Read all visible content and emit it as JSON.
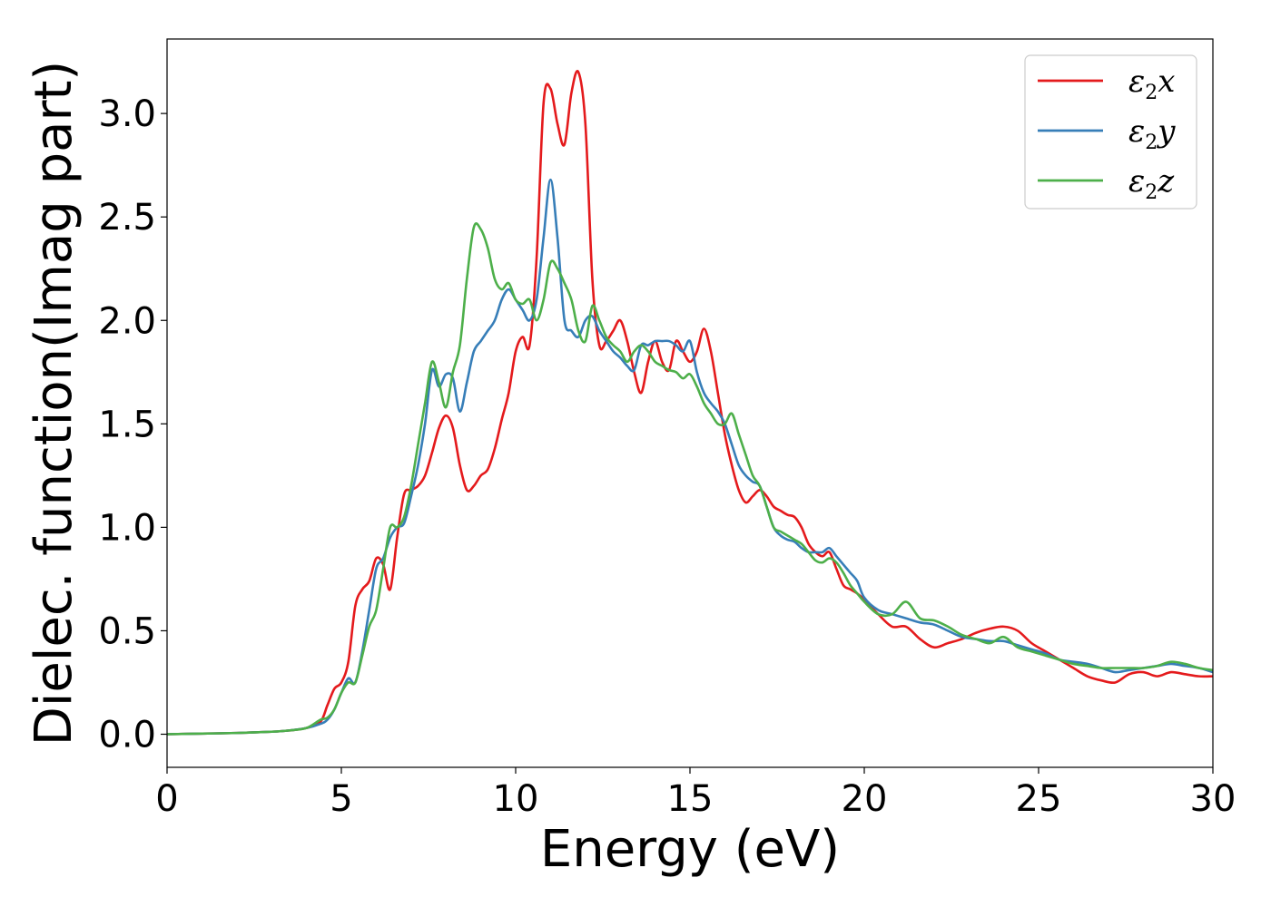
{
  "chart_data": {
    "type": "line",
    "xlabel": "Energy (eV)",
    "ylabel": "Dielec. function(Imag part)",
    "xlim": [
      0,
      30
    ],
    "ylim": [
      -0.16,
      3.36
    ],
    "xticks": [
      0,
      5,
      10,
      15,
      20,
      25,
      30
    ],
    "xtick_labels": [
      "0",
      "5",
      "10",
      "15",
      "20",
      "25",
      "30"
    ],
    "yticks": [
      0.0,
      0.5,
      1.0,
      1.5,
      2.0,
      2.5,
      3.0
    ],
    "ytick_labels": [
      "0.0",
      "0.5",
      "1.0",
      "1.5",
      "2.0",
      "2.5",
      "3.0"
    ],
    "grid": false,
    "legend_position": "top-right",
    "series": [
      {
        "name": "ε2x",
        "legend_symbol": "ε",
        "legend_sub": "2",
        "legend_var": "x",
        "color": "#e41a1c",
        "x": [
          0,
          1,
          2,
          3,
          3.5,
          4,
          4.4,
          4.6,
          4.8,
          5.0,
          5.2,
          5.4,
          5.6,
          5.8,
          6.0,
          6.2,
          6.4,
          6.6,
          6.8,
          7.0,
          7.2,
          7.4,
          7.6,
          7.8,
          8.0,
          8.2,
          8.4,
          8.6,
          8.8,
          9.0,
          9.2,
          9.4,
          9.6,
          9.8,
          10.0,
          10.2,
          10.4,
          10.6,
          10.8,
          11.0,
          11.2,
          11.4,
          11.6,
          11.8,
          12.0,
          12.2,
          12.4,
          12.6,
          12.8,
          13.0,
          13.2,
          13.4,
          13.6,
          13.8,
          14.0,
          14.2,
          14.4,
          14.6,
          14.8,
          15.0,
          15.2,
          15.4,
          15.6,
          15.8,
          16.0,
          16.2,
          16.4,
          16.6,
          16.8,
          17.0,
          17.2,
          17.4,
          17.6,
          17.8,
          18.0,
          18.2,
          18.4,
          18.6,
          18.8,
          19.0,
          19.2,
          19.4,
          19.6,
          19.8,
          20.0,
          20.4,
          20.8,
          21.2,
          21.6,
          22.0,
          22.4,
          22.8,
          23.2,
          23.6,
          24.0,
          24.4,
          24.8,
          25.2,
          25.6,
          26.0,
          26.4,
          26.8,
          27.2,
          27.6,
          28.0,
          28.4,
          28.8,
          29.2,
          29.6,
          30.0
        ],
        "y": [
          0,
          0.003,
          0.006,
          0.012,
          0.018,
          0.03,
          0.06,
          0.14,
          0.22,
          0.25,
          0.35,
          0.62,
          0.7,
          0.74,
          0.85,
          0.82,
          0.7,
          0.95,
          1.16,
          1.18,
          1.2,
          1.25,
          1.36,
          1.48,
          1.54,
          1.48,
          1.3,
          1.18,
          1.2,
          1.25,
          1.28,
          1.38,
          1.52,
          1.65,
          1.85,
          1.92,
          1.88,
          2.3,
          3.05,
          3.12,
          2.95,
          2.85,
          3.1,
          3.2,
          2.95,
          2.2,
          1.88,
          1.9,
          1.95,
          2.0,
          1.9,
          1.75,
          1.65,
          1.8,
          1.9,
          1.8,
          1.76,
          1.9,
          1.85,
          1.8,
          1.85,
          1.96,
          1.85,
          1.65,
          1.45,
          1.3,
          1.18,
          1.12,
          1.15,
          1.18,
          1.15,
          1.1,
          1.08,
          1.06,
          1.05,
          1.0,
          0.92,
          0.88,
          0.86,
          0.88,
          0.8,
          0.72,
          0.7,
          0.68,
          0.65,
          0.58,
          0.52,
          0.52,
          0.46,
          0.42,
          0.44,
          0.46,
          0.49,
          0.51,
          0.52,
          0.5,
          0.44,
          0.4,
          0.36,
          0.32,
          0.28,
          0.26,
          0.25,
          0.29,
          0.3,
          0.28,
          0.3,
          0.29,
          0.28,
          0.28
        ]
      },
      {
        "name": "ε2y",
        "legend_symbol": "ε",
        "legend_sub": "2",
        "legend_var": "y",
        "color": "#377eb8",
        "x": [
          0,
          1,
          2,
          3,
          3.5,
          4,
          4.4,
          4.6,
          4.8,
          5.0,
          5.2,
          5.4,
          5.6,
          5.8,
          6.0,
          6.2,
          6.4,
          6.6,
          6.8,
          7.0,
          7.2,
          7.4,
          7.6,
          7.8,
          8.0,
          8.2,
          8.4,
          8.6,
          8.8,
          9.0,
          9.2,
          9.4,
          9.6,
          9.8,
          10.0,
          10.2,
          10.4,
          10.6,
          10.8,
          11.0,
          11.2,
          11.4,
          11.6,
          11.8,
          12.0,
          12.2,
          12.4,
          12.6,
          12.8,
          13.0,
          13.2,
          13.4,
          13.6,
          13.8,
          14.0,
          14.2,
          14.4,
          14.6,
          14.8,
          15.0,
          15.2,
          15.4,
          15.6,
          15.8,
          16.0,
          16.2,
          16.4,
          16.6,
          16.8,
          17.0,
          17.2,
          17.4,
          17.6,
          17.8,
          18.0,
          18.2,
          18.4,
          18.6,
          18.8,
          19.0,
          19.2,
          19.4,
          19.6,
          19.8,
          20.0,
          20.4,
          20.8,
          21.2,
          21.6,
          22.0,
          22.4,
          22.8,
          23.2,
          23.6,
          24.0,
          24.4,
          24.8,
          25.2,
          25.6,
          26.0,
          26.4,
          26.8,
          27.2,
          27.6,
          28.0,
          28.4,
          28.8,
          29.2,
          29.6,
          30.0
        ],
        "y": [
          0,
          0.003,
          0.006,
          0.012,
          0.018,
          0.03,
          0.05,
          0.07,
          0.12,
          0.2,
          0.27,
          0.25,
          0.4,
          0.6,
          0.8,
          0.85,
          0.95,
          1.0,
          1.02,
          1.15,
          1.3,
          1.5,
          1.76,
          1.68,
          1.74,
          1.72,
          1.56,
          1.7,
          1.85,
          1.9,
          1.95,
          2.0,
          2.1,
          2.15,
          2.1,
          2.05,
          2.0,
          2.1,
          2.4,
          2.68,
          2.4,
          2.0,
          1.95,
          1.92,
          2.0,
          2.02,
          1.95,
          1.9,
          1.85,
          1.82,
          1.78,
          1.76,
          1.88,
          1.88,
          1.9,
          1.9,
          1.9,
          1.88,
          1.85,
          1.9,
          1.75,
          1.65,
          1.6,
          1.56,
          1.5,
          1.4,
          1.3,
          1.25,
          1.22,
          1.2,
          1.1,
          1.0,
          0.96,
          0.94,
          0.93,
          0.9,
          0.88,
          0.88,
          0.88,
          0.9,
          0.86,
          0.82,
          0.78,
          0.74,
          0.66,
          0.6,
          0.58,
          0.56,
          0.54,
          0.53,
          0.5,
          0.47,
          0.46,
          0.45,
          0.45,
          0.43,
          0.41,
          0.39,
          0.36,
          0.35,
          0.34,
          0.32,
          0.3,
          0.31,
          0.32,
          0.33,
          0.34,
          0.33,
          0.32,
          0.3
        ]
      },
      {
        "name": "ε2z",
        "legend_symbol": "ε",
        "legend_sub": "2",
        "legend_var": "z",
        "color": "#4daf4a",
        "x": [
          0,
          1,
          2,
          3,
          3.5,
          4,
          4.4,
          4.6,
          4.8,
          5.0,
          5.2,
          5.4,
          5.6,
          5.8,
          6.0,
          6.2,
          6.4,
          6.6,
          6.8,
          7.0,
          7.2,
          7.4,
          7.6,
          7.8,
          8.0,
          8.2,
          8.4,
          8.6,
          8.8,
          9.0,
          9.2,
          9.4,
          9.6,
          9.8,
          10.0,
          10.2,
          10.4,
          10.6,
          10.8,
          11.0,
          11.2,
          11.4,
          11.6,
          11.8,
          12.0,
          12.2,
          12.4,
          12.6,
          12.8,
          13.0,
          13.2,
          13.4,
          13.6,
          13.8,
          14.0,
          14.2,
          14.4,
          14.6,
          14.8,
          15.0,
          15.2,
          15.4,
          15.6,
          15.8,
          16.0,
          16.2,
          16.4,
          16.6,
          16.8,
          17.0,
          17.2,
          17.4,
          17.6,
          17.8,
          18.0,
          18.2,
          18.4,
          18.6,
          18.8,
          19.0,
          19.2,
          19.4,
          19.6,
          19.8,
          20.0,
          20.4,
          20.8,
          21.2,
          21.6,
          22.0,
          22.4,
          22.8,
          23.2,
          23.6,
          24.0,
          24.4,
          24.8,
          25.2,
          25.6,
          26.0,
          26.4,
          26.8,
          27.2,
          27.6,
          28.0,
          28.4,
          28.8,
          29.2,
          29.6,
          30.0
        ],
        "y": [
          0,
          0.003,
          0.006,
          0.012,
          0.018,
          0.03,
          0.07,
          0.08,
          0.12,
          0.2,
          0.25,
          0.25,
          0.38,
          0.52,
          0.6,
          0.8,
          1.0,
          1.0,
          1.05,
          1.2,
          1.4,
          1.6,
          1.8,
          1.7,
          1.58,
          1.75,
          1.88,
          2.2,
          2.45,
          2.44,
          2.35,
          2.2,
          2.15,
          2.18,
          2.1,
          2.08,
          2.1,
          2.0,
          2.1,
          2.28,
          2.25,
          2.18,
          2.1,
          1.95,
          1.9,
          2.07,
          2.0,
          1.92,
          1.88,
          1.85,
          1.8,
          1.85,
          1.88,
          1.85,
          1.8,
          1.78,
          1.76,
          1.75,
          1.72,
          1.74,
          1.68,
          1.6,
          1.55,
          1.5,
          1.5,
          1.55,
          1.45,
          1.35,
          1.25,
          1.2,
          1.1,
          1.0,
          0.98,
          0.96,
          0.94,
          0.92,
          0.88,
          0.84,
          0.83,
          0.85,
          0.83,
          0.78,
          0.72,
          0.68,
          0.64,
          0.58,
          0.58,
          0.64,
          0.56,
          0.55,
          0.52,
          0.48,
          0.46,
          0.44,
          0.47,
          0.42,
          0.4,
          0.38,
          0.36,
          0.34,
          0.33,
          0.32,
          0.32,
          0.32,
          0.32,
          0.33,
          0.35,
          0.34,
          0.32,
          0.31
        ]
      }
    ]
  }
}
